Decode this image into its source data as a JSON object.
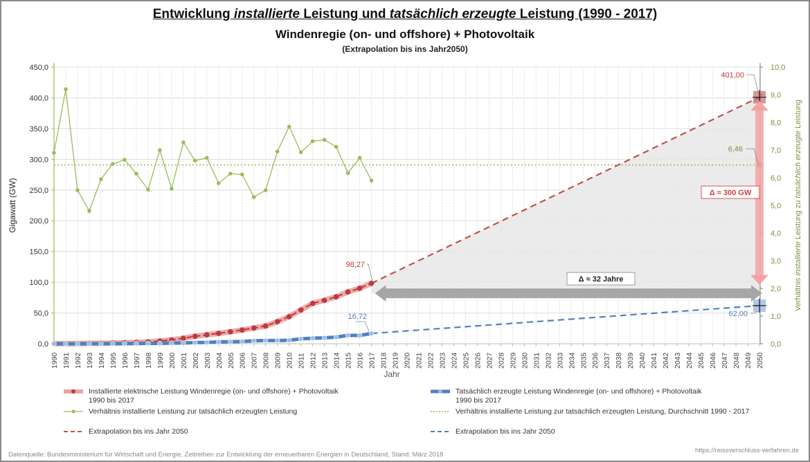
{
  "titles": {
    "line1_parts": [
      "Entwicklung ",
      "installierte",
      " Leistung und ",
      "tatsächlich erzeugte",
      " Leistung (1990 - 2017)"
    ],
    "line2": "Windenregie (on- und offshore) + Photovoltaik",
    "line3": "(Extrapolation bis ins Jahr2050)"
  },
  "chart_data": {
    "type": "line",
    "title": "Entwicklung installierte Leistung und tatsächlich erzeugte Leistung (1990 - 2017) – Windenregie (on- und offshore) + Photovoltaik",
    "subtitle": "(Extrapolation bis ins Jahr2050)",
    "xlabel": "Jahr",
    "ylabel": "Gigawatt (GW)",
    "y2label_parts": [
      "Verhältnis ",
      "installierte",
      " Leistung zu ",
      "tatsächlich erzeugte",
      " Leistung"
    ],
    "x": [
      1990,
      1991,
      1992,
      1993,
      1994,
      1995,
      1996,
      1997,
      1998,
      1999,
      2000,
      2001,
      2002,
      2003,
      2004,
      2005,
      2006,
      2007,
      2008,
      2009,
      2010,
      2011,
      2012,
      2013,
      2014,
      2015,
      2016,
      2017
    ],
    "x_ticks": [
      "1990",
      "1991",
      "1992",
      "1993",
      "1994",
      "1995",
      "1996",
      "1997",
      "1998",
      "1999",
      "2000",
      "2001",
      "2002",
      "2003",
      "2004",
      "2005",
      "2006",
      "2007",
      "2008",
      "2009",
      "2010",
      "2011",
      "2012",
      "2013",
      "2014",
      "2015",
      "2016",
      "2017",
      "2018",
      "2019",
      "2020",
      "2021",
      "2022",
      "2023",
      "2024",
      "2025",
      "2026",
      "2027",
      "2028",
      "2029",
      "2030",
      "2031",
      "2032",
      "2033",
      "2034",
      "2035",
      "2036",
      "2037",
      "2038",
      "2039",
      "2040",
      "2041",
      "2042",
      "2043",
      "2044",
      "2045",
      "2046",
      "2047",
      "2048",
      "2049",
      "2050"
    ],
    "ylim": [
      0,
      450
    ],
    "y_ticks": [
      "0,0",
      "50,0",
      "100,0",
      "150,0",
      "200,0",
      "250,0",
      "300,0",
      "350,0",
      "400,0",
      "450,0"
    ],
    "y2lim": [
      0,
      10
    ],
    "y2_ticks": [
      "0,0",
      "1,0",
      "2,0",
      "3,0",
      "4,0",
      "5,0",
      "6,0",
      "7,0",
      "8,0",
      "9,0",
      "10,0"
    ],
    "grid": true,
    "legend_position": "bottom",
    "series": [
      {
        "name": "Installierte elektrische Leistung Windenregie (on- und offshore) + Photovoltaik 1990 bis 2017",
        "axis": "left",
        "color": "#c0393b",
        "band_color": "#e8a3a4",
        "values": [
          0.1,
          0.2,
          0.3,
          0.5,
          0.7,
          1.1,
          1.6,
          2.1,
          2.9,
          4.4,
          6.2,
          8.9,
          12.2,
          14.6,
          16.9,
          19.5,
          22.3,
          25.6,
          28.8,
          35.9,
          44.1,
          54.9,
          65.6,
          70.6,
          76.3,
          84.3,
          90.2,
          98.27
        ]
      },
      {
        "name": "Tatsächlich erzeugte Leistung Windenregie (on- und offshore) + Photovoltaik 1990 bis 2017",
        "axis": "left",
        "color": "#4f81bd",
        "marker_color": "#9dbbe3",
        "values": [
          0.01,
          0.02,
          0.05,
          0.1,
          0.12,
          0.17,
          0.24,
          0.34,
          0.52,
          0.63,
          1.1,
          1.22,
          1.84,
          2.17,
          2.91,
          3.17,
          3.64,
          4.83,
          5.19,
          5.17,
          5.62,
          7.93,
          8.96,
          9.58,
          10.72,
          13.66,
          13.42,
          16.72
        ]
      },
      {
        "name": "Verhältnis installierte Leistung zur tatsächlich erzeugten Leistung",
        "axis": "right",
        "color": "#9bbb59",
        "values": [
          6.9,
          9.2,
          5.55,
          4.8,
          5.95,
          6.5,
          6.65,
          6.15,
          5.57,
          7.0,
          5.6,
          7.28,
          6.62,
          6.72,
          5.8,
          6.15,
          6.12,
          5.3,
          5.55,
          6.95,
          7.85,
          6.92,
          7.32,
          7.37,
          7.12,
          6.17,
          6.72,
          5.9
        ]
      },
      {
        "name": "Verhältnis installierte Leistung zur tatsächlich erzeugten Leistung, Durchschnitt 1990 - 2017",
        "axis": "right",
        "color": "#9bbb59",
        "style": "dotted",
        "value": 6.46
      },
      {
        "name": "Extrapolation bis ins Jahr 2050",
        "axis": "left",
        "color": "#c0504d",
        "style": "dashed",
        "from": [
          2017,
          98.27
        ],
        "to": [
          2050,
          401.0
        ]
      },
      {
        "name": "Extrapolation bis ins Jahr 2050",
        "axis": "left",
        "color": "#4f81bd",
        "style": "dashed",
        "from": [
          2017,
          16.72
        ],
        "to": [
          2050,
          62.0
        ]
      }
    ],
    "annotations": [
      {
        "text": "98,27",
        "x": 2017,
        "y": 98.27,
        "color": "#c0393b"
      },
      {
        "text": "16,72",
        "x": 2017,
        "y": 16.72,
        "color": "#4f81bd"
      },
      {
        "text": "401,00",
        "x": 2050,
        "y": 401.0,
        "color": "#c0393b"
      },
      {
        "text": "62,00",
        "x": 2050,
        "y": 62.0,
        "color": "#4f81bd"
      },
      {
        "text": "6,46",
        "x": 2050,
        "y2": 6.46,
        "color": "#77933c"
      },
      {
        "text": "Δ ≈ 32 Jahre",
        "kind": "horizontal-arrow",
        "from_year": 2018,
        "to_year": 2050,
        "at_gw": 82
      },
      {
        "text": "Δ ≈ 300 GW",
        "kind": "vertical-arrow",
        "year": 2050,
        "from_gw": 96,
        "to_gw": 395
      }
    ]
  },
  "legend": {
    "items": [
      {
        "label": "Installierte elektrische Leistung Windenregie (on- und offshore) + Photovoltaik",
        "label2": "1990 bis 2017"
      },
      {
        "label": "Tatsächlich erzeugte Leistung Windenregie (on- und offshore) + Photovoltaik",
        "label2": "1990 bis 2017"
      },
      {
        "label": "Verhältnis installierte Leistung zur tatsächlich erzeugten Leistung"
      },
      {
        "label": "Verhältnis installierte Leistung zur tatsächlich erzeugten Leistung, Durchschnitt 1990 - 2017"
      },
      {
        "label": "Extrapolation bis ins Jahr 2050"
      },
      {
        "label": "Extrapolation bis ins Jahr 2050"
      }
    ]
  },
  "footer": {
    "source": "Datenquelle: Bundesministerium für Wirtschaft und Energie, Zeitreihen zur Entwicklung der erneuerbaren Energien in Deutschland, Stand: März 2018",
    "url": "https://reissverschluss-verfahren.de"
  }
}
